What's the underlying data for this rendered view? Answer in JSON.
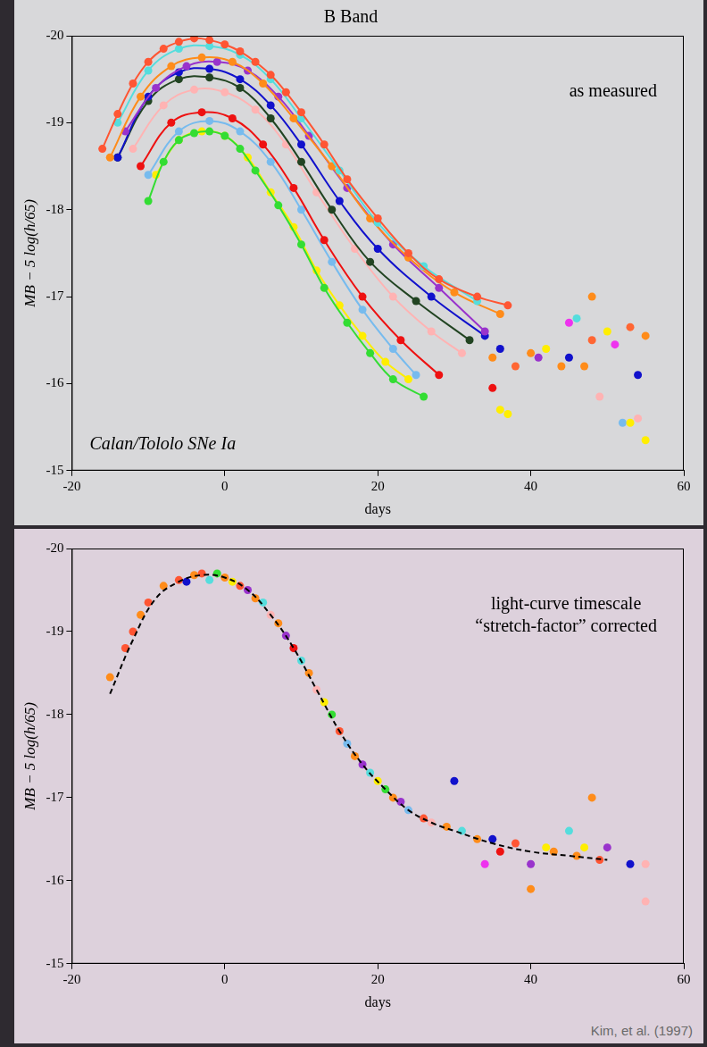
{
  "chart_data": [
    {
      "type": "scatter",
      "title": "B Band",
      "x_label": "days",
      "y_label": "MB − 5 log(h/65)",
      "annotations": [
        "as measured",
        "Calan/Tololo SNe Ia"
      ],
      "xlim": [
        -20,
        60
      ],
      "xticks": [
        -20,
        0,
        20,
        40,
        60
      ],
      "ylim": [
        -15,
        -20
      ],
      "yticks": [
        -20,
        -19,
        -18,
        -17,
        -16,
        -15
      ],
      "grid": false,
      "series": [
        {
          "type": "line",
          "color": "#ff5533",
          "marker": "circle",
          "line_style": "solid",
          "x": [
            -16,
            -14,
            -12,
            -10,
            -8,
            -6,
            -4,
            -2,
            0,
            2,
            4,
            6,
            8,
            10,
            13,
            16,
            20,
            24,
            28,
            33,
            37
          ],
          "values": [
            -18.7,
            -19.1,
            -19.45,
            -19.7,
            -19.85,
            -19.93,
            -19.97,
            -19.95,
            -19.9,
            -19.82,
            -19.7,
            -19.55,
            -19.35,
            -19.12,
            -18.75,
            -18.35,
            -17.9,
            -17.5,
            -17.2,
            -17.0,
            -16.9
          ]
        },
        {
          "type": "line",
          "color": "#55dddd",
          "marker": "circle",
          "line_style": "solid",
          "x": [
            -14,
            -10,
            -6,
            -2,
            2,
            6,
            10,
            15,
            20,
            26,
            33
          ],
          "values": [
            -19.0,
            -19.6,
            -19.85,
            -19.88,
            -19.78,
            -19.5,
            -19.05,
            -18.45,
            -17.85,
            -17.35,
            -16.95
          ]
        },
        {
          "type": "line",
          "color": "#ff8c1a",
          "marker": "circle",
          "line_style": "solid",
          "x": [
            -15,
            -11,
            -7,
            -3,
            1,
            5,
            9,
            14,
            19,
            24,
            30,
            36
          ],
          "values": [
            -18.6,
            -19.3,
            -19.65,
            -19.75,
            -19.7,
            -19.45,
            -19.05,
            -18.5,
            -17.9,
            -17.45,
            -17.05,
            -16.8
          ]
        },
        {
          "type": "line",
          "color": "#9933cc",
          "marker": "circle",
          "line_style": "solid",
          "x": [
            -13,
            -9,
            -5,
            -1,
            3,
            7,
            11,
            16,
            22,
            28,
            34
          ],
          "values": [
            -18.9,
            -19.4,
            -19.65,
            -19.7,
            -19.6,
            -19.3,
            -18.85,
            -18.25,
            -17.6,
            -17.1,
            -16.6
          ]
        },
        {
          "type": "line",
          "color": "#1111cc",
          "marker": "circle",
          "line_style": "solid",
          "x": [
            -14,
            -10,
            -6,
            -2,
            2,
            6,
            10,
            15,
            20,
            27,
            34
          ],
          "values": [
            -18.6,
            -19.3,
            -19.58,
            -19.62,
            -19.5,
            -19.2,
            -18.75,
            -18.1,
            -17.55,
            -17.0,
            -16.55
          ]
        },
        {
          "type": "line",
          "color": "#224422",
          "marker": "circle",
          "line_style": "solid",
          "x": [
            -14,
            -10,
            -6,
            -2,
            2,
            6,
            10,
            14,
            19,
            25,
            32
          ],
          "values": [
            -18.6,
            -19.25,
            -19.5,
            -19.52,
            -19.4,
            -19.05,
            -18.55,
            -18.0,
            -17.4,
            -16.95,
            -16.5
          ]
        },
        {
          "type": "line",
          "color": "#ffb3b3",
          "marker": "circle",
          "line_style": "solid",
          "x": [
            -12,
            -8,
            -4,
            0,
            4,
            8,
            12,
            17,
            22,
            27,
            31
          ],
          "values": [
            -18.7,
            -19.2,
            -19.38,
            -19.35,
            -19.15,
            -18.75,
            -18.2,
            -17.55,
            -17.0,
            -16.6,
            -16.35
          ]
        },
        {
          "type": "line",
          "color": "#ee1111",
          "marker": "circle",
          "line_style": "solid",
          "x": [
            -11,
            -7,
            -3,
            1,
            5,
            9,
            13,
            18,
            23,
            28
          ],
          "values": [
            -18.5,
            -19.0,
            -19.12,
            -19.05,
            -18.75,
            -18.25,
            -17.65,
            -17.0,
            -16.5,
            -16.1
          ]
        },
        {
          "type": "line",
          "color": "#77bbee",
          "marker": "circle",
          "line_style": "solid",
          "x": [
            -10,
            -6,
            -2,
            2,
            6,
            10,
            14,
            18,
            22,
            25
          ],
          "values": [
            -18.4,
            -18.9,
            -19.02,
            -18.9,
            -18.55,
            -18.0,
            -17.4,
            -16.85,
            -16.4,
            -16.1
          ]
        },
        {
          "type": "line",
          "color": "#33dd33",
          "marker": "circle",
          "line_style": "solid",
          "x": [
            -10,
            -8,
            -6,
            -4,
            -2,
            0,
            2,
            4,
            7,
            10,
            13,
            16,
            19,
            22,
            26
          ],
          "values": [
            -18.1,
            -18.55,
            -18.8,
            -18.88,
            -18.9,
            -18.85,
            -18.7,
            -18.45,
            -18.05,
            -17.6,
            -17.1,
            -16.7,
            -16.35,
            -16.05,
            -15.85
          ]
        },
        {
          "type": "line",
          "color": "#ffee00",
          "marker": "circle",
          "line_style": "solid",
          "x": [
            -9,
            -6,
            -3,
            0,
            3,
            6,
            9,
            12,
            15,
            18,
            21,
            24
          ],
          "values": [
            -18.4,
            -18.8,
            -18.9,
            -18.85,
            -18.6,
            -18.2,
            -17.8,
            -17.3,
            -16.9,
            -16.55,
            -16.25,
            -16.05
          ]
        },
        {
          "type": "scatter",
          "marker": "circle",
          "x": [
            35,
            36,
            38,
            40,
            41,
            42,
            44,
            45,
            45,
            46,
            47,
            48,
            48,
            49,
            50,
            51,
            52,
            53,
            53,
            54,
            54,
            55,
            55,
            37,
            36,
            35
          ],
          "values": [
            -16.3,
            -16.4,
            -16.2,
            -16.35,
            -16.3,
            -16.4,
            -16.2,
            -16.7,
            -16.3,
            -16.75,
            -16.2,
            -17.0,
            -16.5,
            -15.85,
            -16.6,
            -16.45,
            -15.55,
            -15.55,
            -16.65,
            -16.1,
            -15.6,
            -15.35,
            -16.55,
            -15.65,
            -15.7,
            -15.95
          ],
          "colors": [
            "#ff8c1a",
            "#1111cc",
            "#ff6633",
            "#ff8c1a",
            "#9933cc",
            "#ffee00",
            "#ff8c1a",
            "#ee33ee",
            "#1111cc",
            "#55dddd",
            "#ff8c1a",
            "#ff8c1a",
            "#ff6633",
            "#ffb3b3",
            "#ffee00",
            "#ee33ee",
            "#77bbee",
            "#ffee00",
            "#ff6633",
            "#1111cc",
            "#ffb3b3",
            "#ffee00",
            "#ff8c1a",
            "#ffee00",
            "#ffee00",
            "#ee1111"
          ]
        }
      ]
    },
    {
      "type": "scatter",
      "x_label": "days",
      "y_label": "MB − 5 log(h/65)",
      "annotations": [
        "light-curve timescale “stretch-factor” corrected"
      ],
      "xlim": [
        -20,
        60
      ],
      "xticks": [
        -20,
        0,
        20,
        40,
        60
      ],
      "ylim": [
        -15,
        -20
      ],
      "yticks": [
        -20,
        -19,
        -18,
        -17,
        -16,
        -15
      ],
      "grid": false,
      "series": [
        {
          "type": "line",
          "color": "#000000",
          "marker": "none",
          "line_style": "dashed",
          "x": [
            -15,
            -12,
            -9,
            -6,
            -3,
            0,
            3,
            6,
            9,
            12,
            15,
            18,
            21,
            24,
            27,
            30,
            35,
            40,
            45,
            50
          ],
          "values": [
            -18.25,
            -18.9,
            -19.4,
            -19.6,
            -19.68,
            -19.65,
            -19.5,
            -19.2,
            -18.8,
            -18.3,
            -17.8,
            -17.4,
            -17.1,
            -16.85,
            -16.7,
            -16.6,
            -16.45,
            -16.35,
            -16.3,
            -16.25
          ]
        },
        {
          "type": "scatter",
          "marker": "circle",
          "x": [
            -15,
            -13,
            -12,
            -11,
            -10,
            -8,
            -6,
            -5,
            -4,
            -3,
            -2,
            -1,
            0,
            1,
            2,
            3,
            4,
            5,
            6,
            7,
            8,
            9,
            10,
            11,
            12,
            13,
            14,
            15,
            16,
            17,
            18,
            19,
            20,
            21,
            22,
            23,
            24,
            26,
            27,
            29,
            30,
            31,
            33,
            34,
            35,
            36,
            38,
            40,
            40,
            42,
            43,
            45,
            46,
            47,
            48,
            49,
            50,
            53,
            55,
            55
          ],
          "values": [
            -18.45,
            -18.8,
            -19.0,
            -19.2,
            -19.35,
            -19.55,
            -19.62,
            -19.6,
            -19.68,
            -19.7,
            -19.62,
            -19.7,
            -19.65,
            -19.6,
            -19.55,
            -19.5,
            -19.4,
            -19.35,
            -19.2,
            -19.1,
            -18.95,
            -18.8,
            -18.65,
            -18.5,
            -18.3,
            -18.15,
            -18.0,
            -17.8,
            -17.65,
            -17.5,
            -17.4,
            -17.3,
            -17.2,
            -17.1,
            -17.0,
            -16.95,
            -16.85,
            -16.75,
            -16.7,
            -16.65,
            -17.2,
            -16.6,
            -16.5,
            -16.2,
            -16.5,
            -16.35,
            -16.45,
            -16.2,
            -15.9,
            -16.4,
            -16.35,
            -16.6,
            -16.3,
            -16.4,
            -17.0,
            -16.25,
            -16.4,
            -16.2,
            -16.2,
            -15.75
          ],
          "colors": [
            "#ff8c1a",
            "#ff5533",
            "#ff5533",
            "#ff8c1a",
            "#ff5533",
            "#ff8c1a",
            "#ff5533",
            "#1111cc",
            "#ff8c1a",
            "#ff5533",
            "#55dddd",
            "#33dd33",
            "#ff8c1a",
            "#ffee00",
            "#ff5533",
            "#9933cc",
            "#ff8c1a",
            "#55dddd",
            "#ffb3b3",
            "#ff8c1a",
            "#9933cc",
            "#ee1111",
            "#55dddd",
            "#ff8c1a",
            "#ffb3b3",
            "#ffee00",
            "#33dd33",
            "#ff5533",
            "#77bbee",
            "#ff8c1a",
            "#9933cc",
            "#55dddd",
            "#ffee00",
            "#33dd33",
            "#ff8c1a",
            "#9933cc",
            "#77bbee",
            "#ff5533",
            "#ffb3b3",
            "#ff8c1a",
            "#1111cc",
            "#55dddd",
            "#ff8c1a",
            "#ee33ee",
            "#1111cc",
            "#ee1111",
            "#ff5533",
            "#9933cc",
            "#ff8c1a",
            "#ffee00",
            "#ff8c1a",
            "#55dddd",
            "#ff8c1a",
            "#ffee00",
            "#ff8c1a",
            "#ff5533",
            "#9933cc",
            "#1111cc",
            "#ffb3b3",
            "#ffb3b3"
          ]
        }
      ]
    }
  ],
  "credit": "Kim, et al. (1997)"
}
